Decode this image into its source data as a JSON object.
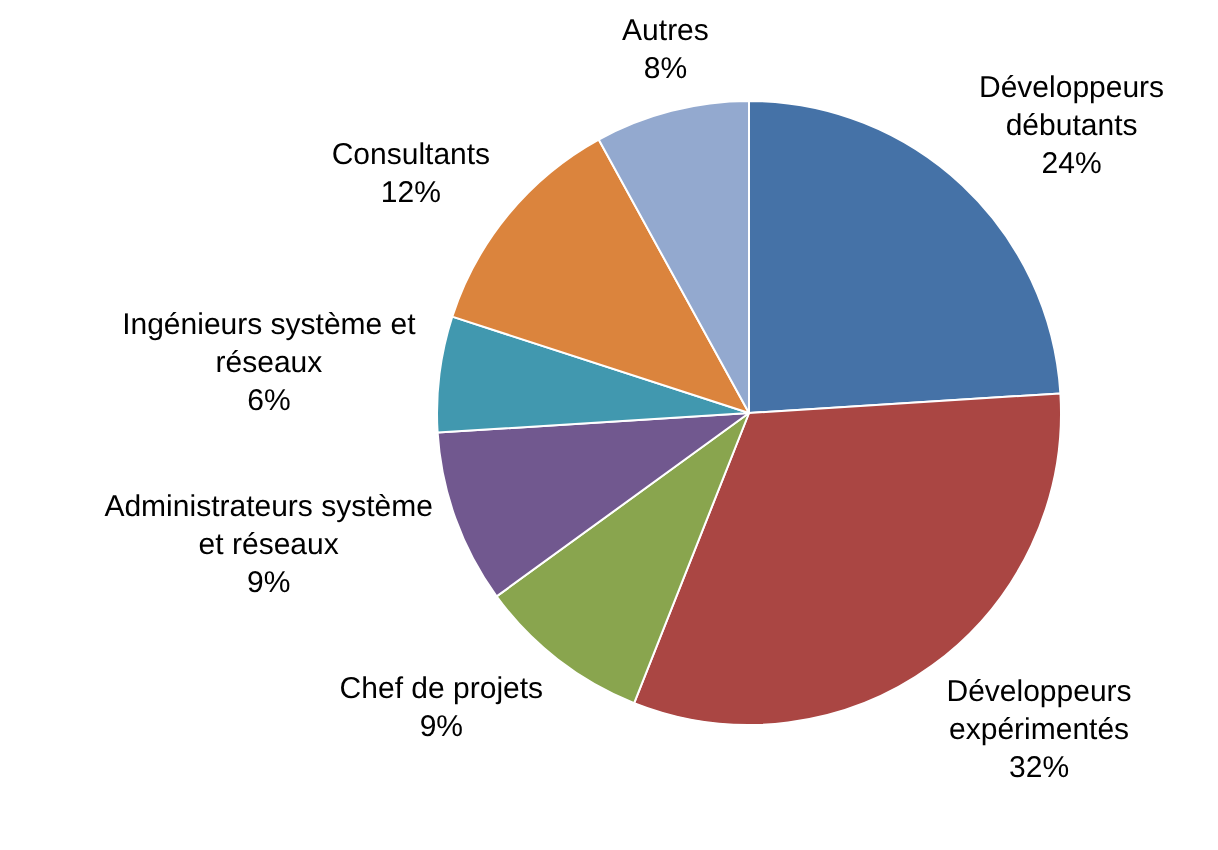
{
  "chart_data": {
    "type": "pie",
    "categories": [
      "Développeurs débutants",
      "Développeurs expérimentés",
      "Chef de projets",
      "Administrateurs système et réseaux",
      "Ingénieurs système et réseaux",
      "Consultants",
      "Autres"
    ],
    "values": [
      24,
      32,
      9,
      9,
      6,
      12,
      8
    ],
    "value_labels": [
      "24%",
      "32%",
      "9%",
      "9%",
      "6%",
      "12%",
      "8%"
    ],
    "colors": [
      "#4572a7",
      "#aa4643",
      "#89a54e",
      "#71588f",
      "#4198af",
      "#db843d",
      "#93a9cf"
    ],
    "legend": false
  }
}
